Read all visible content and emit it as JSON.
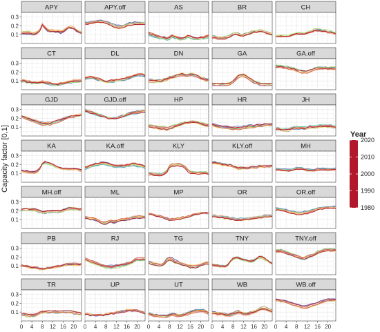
{
  "chart_data": {
    "type": "line",
    "facet_layout": "7 rows x 5 columns small multiples",
    "ylabel": "Capacity factor [0,1]",
    "xlabel": "",
    "x_ticks": [
      0,
      4,
      8,
      12,
      16,
      20
    ],
    "y_ticks": [
      0.1,
      0.2,
      0.3
    ],
    "xlim": [
      0,
      23
    ],
    "ylim": [
      0,
      0.35
    ],
    "grid": true,
    "legend": {
      "title": "Year",
      "type": "continuous colorbar",
      "placement": "right",
      "ticks": [
        2020,
        2010,
        2000,
        1990,
        1980
      ],
      "range": [
        1980,
        2020
      ],
      "colors": [
        "#b2182b",
        "#d6604d",
        "#f4a582",
        "#fddc62",
        "#a6d96a",
        "#5ab4ac",
        "#6a7fb8",
        "#5e4fa2"
      ]
    },
    "panel_header_color": "#d9d9d9",
    "panels": [
      {
        "name": "APY",
        "shape": [
          0.12,
          0.12,
          0.12,
          0.12,
          0.11,
          0.11,
          0.12,
          0.15,
          0.21,
          0.18,
          0.15,
          0.14,
          0.14,
          0.14,
          0.14,
          0.13,
          0.14,
          0.16,
          0.18,
          0.18,
          0.17,
          0.15,
          0.13,
          0.12
        ]
      },
      {
        "name": "APY.off",
        "shape": [
          0.23,
          0.23,
          0.24,
          0.24,
          0.25,
          0.25,
          0.25,
          0.25,
          0.24,
          0.23,
          0.22,
          0.2,
          0.19,
          0.19,
          0.19,
          0.2,
          0.21,
          0.22,
          0.22,
          0.23,
          0.23,
          0.23,
          0.23,
          0.23
        ]
      },
      {
        "name": "AS",
        "shape": [
          0.11,
          0.1,
          0.09,
          0.08,
          0.07,
          0.06,
          0.06,
          0.05,
          0.06,
          0.08,
          0.07,
          0.06,
          0.05,
          0.05,
          0.06,
          0.08,
          0.07,
          0.06,
          0.05,
          0.05,
          0.06,
          0.06,
          0.07,
          0.08
        ]
      },
      {
        "name": "BR",
        "shape": [
          0.07,
          0.07,
          0.06,
          0.06,
          0.06,
          0.06,
          0.07,
          0.08,
          0.1,
          0.11,
          0.1,
          0.09,
          0.09,
          0.1,
          0.11,
          0.12,
          0.13,
          0.13,
          0.14,
          0.14,
          0.13,
          0.12,
          0.11,
          0.1
        ]
      },
      {
        "name": "CH",
        "shape": [
          0.08,
          0.08,
          0.08,
          0.08,
          0.08,
          0.08,
          0.09,
          0.1,
          0.11,
          0.11,
          0.11,
          0.11,
          0.12,
          0.13,
          0.14,
          0.15,
          0.15,
          0.15,
          0.14,
          0.14,
          0.13,
          0.13,
          0.12,
          0.11
        ]
      },
      {
        "name": "CT",
        "shape": [
          0.1,
          0.1,
          0.09,
          0.09,
          0.08,
          0.08,
          0.08,
          0.08,
          0.09,
          0.08,
          0.08,
          0.07,
          0.06,
          0.06,
          0.06,
          0.07,
          0.07,
          0.08,
          0.09,
          0.09,
          0.1,
          0.1,
          0.1,
          0.1
        ]
      },
      {
        "name": "DL",
        "shape": [
          0.13,
          0.14,
          0.14,
          0.14,
          0.13,
          0.12,
          0.11,
          0.1,
          0.09,
          0.09,
          0.1,
          0.1,
          0.11,
          0.11,
          0.12,
          0.12,
          0.13,
          0.14,
          0.15,
          0.16,
          0.17,
          0.17,
          0.17,
          0.16
        ]
      },
      {
        "name": "DN",
        "shape": [
          0.1,
          0.1,
          0.1,
          0.1,
          0.1,
          0.1,
          0.11,
          0.12,
          0.13,
          0.14,
          0.15,
          0.16,
          0.17,
          0.17,
          0.16,
          0.16,
          0.17,
          0.17,
          0.16,
          0.15,
          0.13,
          0.12,
          0.11,
          0.11
        ]
      },
      {
        "name": "GA",
        "shape": [
          0.06,
          0.06,
          0.06,
          0.06,
          0.06,
          0.06,
          0.06,
          0.07,
          0.09,
          0.12,
          0.15,
          0.16,
          0.16,
          0.15,
          0.13,
          0.11,
          0.09,
          0.08,
          0.07,
          0.06,
          0.06,
          0.06,
          0.06,
          0.06
        ]
      },
      {
        "name": "GA.off",
        "shape": [
          0.26,
          0.26,
          0.26,
          0.25,
          0.25,
          0.24,
          0.24,
          0.23,
          0.22,
          0.21,
          0.2,
          0.2,
          0.2,
          0.21,
          0.22,
          0.23,
          0.24,
          0.24,
          0.24,
          0.24,
          0.24,
          0.24,
          0.24,
          0.24
        ]
      },
      {
        "name": "GJD",
        "shape": [
          0.22,
          0.21,
          0.2,
          0.19,
          0.18,
          0.17,
          0.16,
          0.15,
          0.14,
          0.14,
          0.14,
          0.14,
          0.15,
          0.16,
          0.17,
          0.18,
          0.19,
          0.2,
          0.21,
          0.22,
          0.22,
          0.23,
          0.23,
          0.24
        ]
      },
      {
        "name": "GJD.off",
        "shape": [
          0.29,
          0.28,
          0.27,
          0.26,
          0.25,
          0.24,
          0.23,
          0.22,
          0.21,
          0.2,
          0.2,
          0.2,
          0.2,
          0.21,
          0.22,
          0.23,
          0.24,
          0.25,
          0.26,
          0.26,
          0.27,
          0.27,
          0.28,
          0.28
        ]
      },
      {
        "name": "HP",
        "shape": [
          0.11,
          0.11,
          0.1,
          0.1,
          0.09,
          0.09,
          0.09,
          0.08,
          0.09,
          0.1,
          0.11,
          0.12,
          0.13,
          0.14,
          0.15,
          0.15,
          0.16,
          0.16,
          0.16,
          0.15,
          0.14,
          0.13,
          0.12,
          0.12
        ]
      },
      {
        "name": "HR",
        "shape": [
          0.13,
          0.12,
          0.11,
          0.11,
          0.1,
          0.1,
          0.1,
          0.09,
          0.09,
          0.09,
          0.09,
          0.09,
          0.1,
          0.1,
          0.11,
          0.11,
          0.11,
          0.12,
          0.12,
          0.12,
          0.13,
          0.13,
          0.13,
          0.13
        ]
      },
      {
        "name": "JH",
        "shape": [
          0.08,
          0.08,
          0.07,
          0.07,
          0.07,
          0.07,
          0.08,
          0.09,
          0.09,
          0.09,
          0.09,
          0.09,
          0.09,
          0.1,
          0.1,
          0.1,
          0.1,
          0.11,
          0.11,
          0.11,
          0.11,
          0.11,
          0.1,
          0.1
        ]
      },
      {
        "name": "KA",
        "shape": [
          0.13,
          0.12,
          0.12,
          0.11,
          0.11,
          0.11,
          0.12,
          0.15,
          0.21,
          0.23,
          0.22,
          0.21,
          0.2,
          0.18,
          0.17,
          0.16,
          0.15,
          0.15,
          0.15,
          0.15,
          0.15,
          0.15,
          0.14,
          0.13
        ]
      },
      {
        "name": "KA.off",
        "shape": [
          0.16,
          0.17,
          0.18,
          0.19,
          0.2,
          0.2,
          0.21,
          0.21,
          0.21,
          0.2,
          0.19,
          0.18,
          0.18,
          0.18,
          0.18,
          0.18,
          0.19,
          0.19,
          0.2,
          0.2,
          0.19,
          0.19,
          0.18,
          0.17
        ]
      },
      {
        "name": "KLY",
        "shape": [
          0.09,
          0.09,
          0.08,
          0.08,
          0.08,
          0.08,
          0.09,
          0.12,
          0.17,
          0.19,
          0.19,
          0.19,
          0.19,
          0.18,
          0.16,
          0.13,
          0.11,
          0.1,
          0.1,
          0.1,
          0.1,
          0.1,
          0.1,
          0.09
        ]
      },
      {
        "name": "KLY.off",
        "shape": [
          0.22,
          0.22,
          0.21,
          0.21,
          0.2,
          0.2,
          0.19,
          0.19,
          0.18,
          0.17,
          0.16,
          0.16,
          0.16,
          0.16,
          0.16,
          0.17,
          0.17,
          0.17,
          0.18,
          0.18,
          0.18,
          0.18,
          0.18,
          0.19
        ]
      },
      {
        "name": "MH",
        "shape": [
          0.15,
          0.15,
          0.14,
          0.14,
          0.14,
          0.14,
          0.14,
          0.15,
          0.16,
          0.16,
          0.16,
          0.15,
          0.14,
          0.14,
          0.14,
          0.14,
          0.15,
          0.15,
          0.15,
          0.15,
          0.15,
          0.15,
          0.15,
          0.15
        ]
      },
      {
        "name": "MH.off",
        "shape": [
          0.21,
          0.21,
          0.21,
          0.21,
          0.21,
          0.21,
          0.2,
          0.19,
          0.18,
          0.18,
          0.19,
          0.19,
          0.19,
          0.19,
          0.19,
          0.19,
          0.2,
          0.21,
          0.22,
          0.22,
          0.22,
          0.22,
          0.21,
          0.21
        ]
      },
      {
        "name": "ML",
        "shape": [
          0.13,
          0.12,
          0.11,
          0.11,
          0.1,
          0.09,
          0.07,
          0.06,
          0.06,
          0.07,
          0.08,
          0.07,
          0.08,
          0.09,
          0.1,
          0.1,
          0.11,
          0.11,
          0.12,
          0.13,
          0.13,
          0.13,
          0.13,
          0.13
        ]
      },
      {
        "name": "MP",
        "shape": [
          0.16,
          0.16,
          0.15,
          0.14,
          0.14,
          0.13,
          0.12,
          0.11,
          0.1,
          0.1,
          0.1,
          0.11,
          0.11,
          0.12,
          0.12,
          0.13,
          0.14,
          0.15,
          0.16,
          0.16,
          0.17,
          0.17,
          0.17,
          0.17
        ]
      },
      {
        "name": "OR",
        "shape": [
          0.14,
          0.14,
          0.13,
          0.13,
          0.13,
          0.12,
          0.12,
          0.11,
          0.11,
          0.1,
          0.1,
          0.1,
          0.1,
          0.11,
          0.11,
          0.11,
          0.12,
          0.12,
          0.13,
          0.13,
          0.14,
          0.14,
          0.14,
          0.14
        ]
      },
      {
        "name": "OR.off",
        "shape": [
          0.22,
          0.22,
          0.21,
          0.21,
          0.2,
          0.19,
          0.18,
          0.18,
          0.17,
          0.17,
          0.17,
          0.18,
          0.18,
          0.19,
          0.2,
          0.21,
          0.22,
          0.23,
          0.23,
          0.24,
          0.24,
          0.24,
          0.24,
          0.24
        ]
      },
      {
        "name": "PB",
        "shape": [
          0.11,
          0.1,
          0.1,
          0.09,
          0.08,
          0.08,
          0.08,
          0.07,
          0.07,
          0.07,
          0.08,
          0.08,
          0.09,
          0.09,
          0.1,
          0.1,
          0.11,
          0.12,
          0.12,
          0.12,
          0.12,
          0.12,
          0.12,
          0.12
        ]
      },
      {
        "name": "RJ",
        "shape": [
          0.17,
          0.16,
          0.15,
          0.14,
          0.13,
          0.12,
          0.11,
          0.1,
          0.09,
          0.09,
          0.09,
          0.09,
          0.1,
          0.1,
          0.11,
          0.11,
          0.12,
          0.13,
          0.14,
          0.16,
          0.17,
          0.17,
          0.17,
          0.17
        ]
      },
      {
        "name": "TG",
        "shape": [
          0.14,
          0.13,
          0.12,
          0.12,
          0.11,
          0.11,
          0.13,
          0.17,
          0.18,
          0.17,
          0.15,
          0.14,
          0.13,
          0.12,
          0.11,
          0.1,
          0.09,
          0.09,
          0.09,
          0.1,
          0.11,
          0.12,
          0.13,
          0.13
        ]
      },
      {
        "name": "TNY",
        "shape": [
          0.11,
          0.1,
          0.1,
          0.09,
          0.09,
          0.09,
          0.11,
          0.15,
          0.18,
          0.19,
          0.19,
          0.18,
          0.17,
          0.16,
          0.15,
          0.15,
          0.16,
          0.18,
          0.2,
          0.2,
          0.18,
          0.16,
          0.14,
          0.12
        ]
      },
      {
        "name": "TNY.off",
        "shape": [
          0.27,
          0.27,
          0.27,
          0.26,
          0.25,
          0.24,
          0.23,
          0.22,
          0.21,
          0.2,
          0.19,
          0.19,
          0.2,
          0.21,
          0.22,
          0.23,
          0.25,
          0.26,
          0.27,
          0.28,
          0.28,
          0.28,
          0.28,
          0.28
        ]
      },
      {
        "name": "TR",
        "shape": [
          0.07,
          0.07,
          0.06,
          0.06,
          0.06,
          0.06,
          0.07,
          0.09,
          0.1,
          0.1,
          0.1,
          0.1,
          0.1,
          0.1,
          0.1,
          0.1,
          0.1,
          0.1,
          0.1,
          0.1,
          0.09,
          0.09,
          0.08,
          0.08
        ]
      },
      {
        "name": "UP",
        "shape": [
          0.08,
          0.08,
          0.07,
          0.07,
          0.07,
          0.07,
          0.07,
          0.07,
          0.08,
          0.08,
          0.09,
          0.09,
          0.1,
          0.1,
          0.11,
          0.11,
          0.12,
          0.12,
          0.12,
          0.12,
          0.12,
          0.11,
          0.1,
          0.09
        ]
      },
      {
        "name": "UT",
        "shape": [
          0.08,
          0.07,
          0.06,
          0.06,
          0.05,
          0.05,
          0.05,
          0.05,
          0.06,
          0.07,
          0.07,
          0.06,
          0.06,
          0.06,
          0.07,
          0.08,
          0.09,
          0.1,
          0.11,
          0.11,
          0.11,
          0.11,
          0.1,
          0.09
        ]
      },
      {
        "name": "WB",
        "shape": [
          0.09,
          0.09,
          0.08,
          0.08,
          0.08,
          0.07,
          0.07,
          0.07,
          0.08,
          0.09,
          0.1,
          0.09,
          0.08,
          0.08,
          0.08,
          0.09,
          0.1,
          0.11,
          0.13,
          0.14,
          0.14,
          0.13,
          0.12,
          0.11
        ]
      },
      {
        "name": "WB.off",
        "shape": [
          0.24,
          0.24,
          0.23,
          0.23,
          0.22,
          0.21,
          0.2,
          0.19,
          0.18,
          0.17,
          0.16,
          0.16,
          0.16,
          0.17,
          0.18,
          0.19,
          0.2,
          0.21,
          0.22,
          0.23,
          0.24,
          0.24,
          0.24,
          0.24
        ]
      }
    ]
  }
}
